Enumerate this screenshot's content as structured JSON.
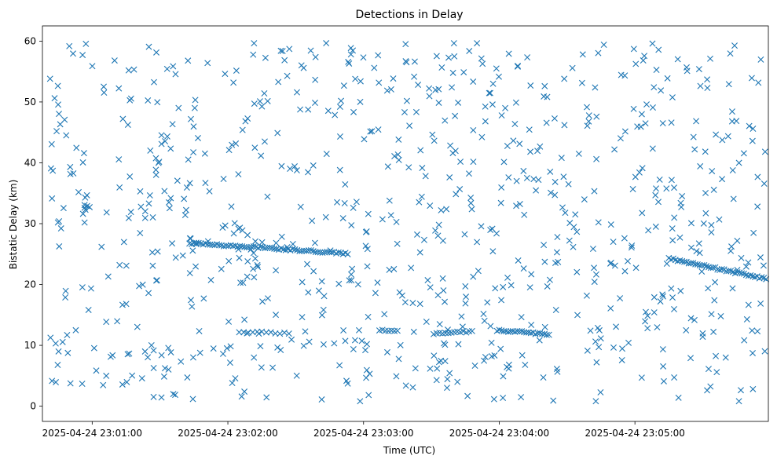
{
  "chart_data": {
    "type": "scatter",
    "title": "Detections in Delay",
    "xlabel": "Time (UTC)",
    "ylabel": "Bistatic Delay (km)",
    "marker": "x",
    "color": "#1f77b4",
    "grid": false,
    "x_ticks": [
      "2025-04-24 23:01:00",
      "2025-04-24 23:02:00",
      "2025-04-24 23:03:00",
      "2025-04-24 23:04:00",
      "2025-04-24 23:05:00"
    ],
    "y_ticks": [
      0,
      10,
      20,
      30,
      40,
      50,
      60
    ],
    "xlim": [
      "2025-04-24 23:00:38",
      "2025-04-24 23:05:59"
    ],
    "ylim": [
      -2.5,
      62.5
    ],
    "tracks": [
      {
        "t_start": "2025-04-24 23:01:43",
        "t_end": "2025-04-24 23:02:53",
        "delay_start": 26.8,
        "delay_end": 25.1,
        "points": 70
      },
      {
        "t_start": "2025-04-24 23:02:05",
        "t_end": "2025-04-24 23:02:27",
        "delay_start": 12.2,
        "delay_end": 12.0,
        "points": 12
      },
      {
        "t_start": "2025-04-24 23:03:07",
        "t_end": "2025-04-24 23:03:15",
        "delay_start": 12.5,
        "delay_end": 12.4,
        "points": 7
      },
      {
        "t_start": "2025-04-24 23:03:31",
        "t_end": "2025-04-24 23:03:48",
        "delay_start": 12.0,
        "delay_end": 12.3,
        "points": 14
      },
      {
        "t_start": "2025-04-24 23:03:59",
        "t_end": "2025-04-24 23:04:22",
        "delay_start": 12.5,
        "delay_end": 11.8,
        "points": 24
      },
      {
        "t_start": "2025-04-24 23:05:15",
        "t_end": "2025-04-24 23:05:58",
        "delay_start": 24.3,
        "delay_end": 20.9,
        "points": 45
      }
    ],
    "clutter": {
      "t_start": "2025-04-24 23:00:40",
      "t_end": "2025-04-24 23:05:58",
      "delay_min": 0.8,
      "delay_max": 59.8,
      "points": 820
    }
  }
}
